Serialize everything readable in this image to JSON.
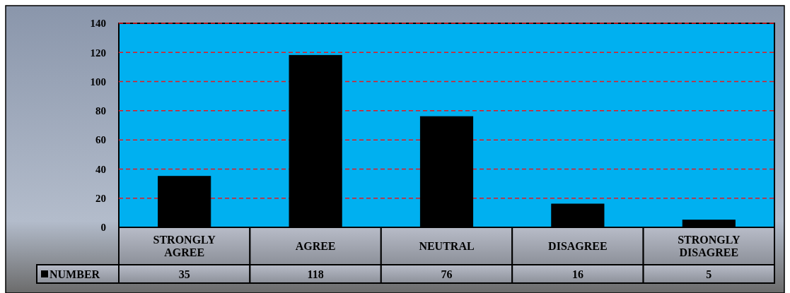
{
  "chart_data": {
    "type": "bar",
    "categories": [
      "STRONGLY AGREE",
      "AGREE",
      "NEUTRAL",
      "DISAGREE",
      "STRONGLY DISAGREE"
    ],
    "series": [
      {
        "name": "NUMBER",
        "color": "#000000",
        "values": [
          35,
          118,
          76,
          16,
          5
        ]
      }
    ],
    "ylim": [
      0,
      140
    ],
    "yticks": [
      0,
      20,
      40,
      60,
      80,
      100,
      120,
      140
    ],
    "grid": "y",
    "data_labels": true,
    "legend": "bottom left"
  }
}
